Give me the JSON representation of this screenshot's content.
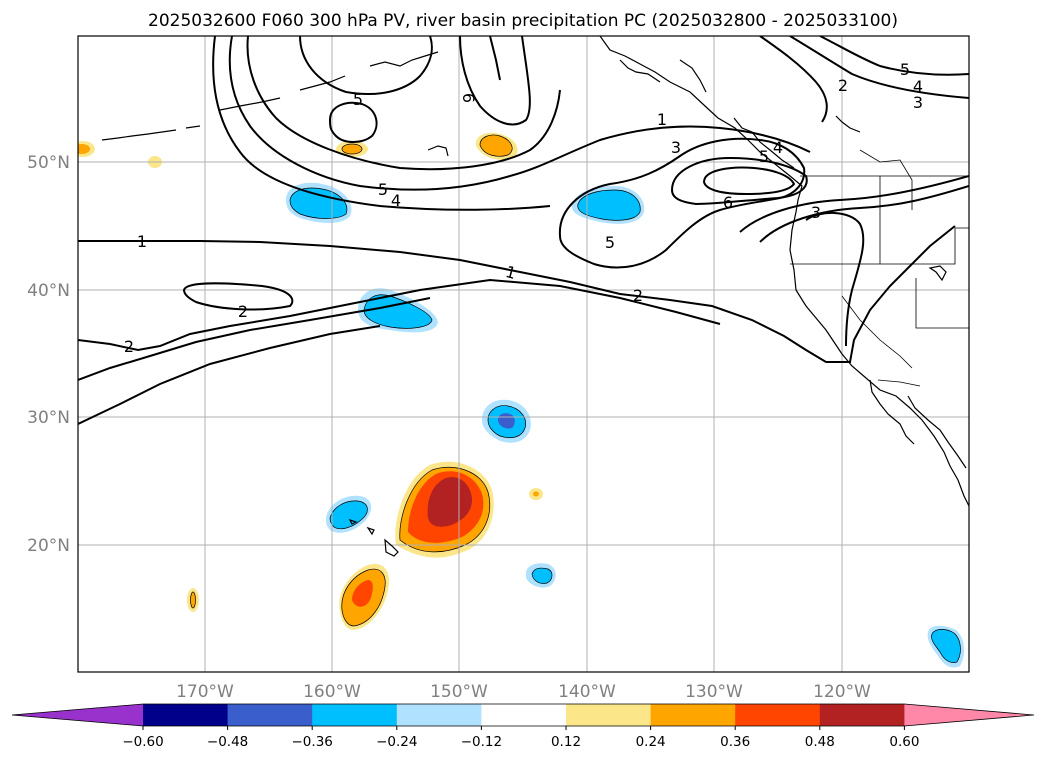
{
  "title": "2025032600 F060 300 hPa PV, river basin precipitation PC (2025032800 - 2025033100)",
  "lon_ticks": [
    "170°W",
    "160°W",
    "150°W",
    "140°W",
    "130°W",
    "120°W"
  ],
  "lat_ticks": [
    "50°N",
    "40°N",
    "30°N",
    "20°N"
  ],
  "colorbar": {
    "colors": [
      "#9932cc",
      "#00008b",
      "#3a5fcd",
      "#00bfff",
      "#b0e2ff",
      "#ffffff",
      "#fbe68a",
      "#ffa500",
      "#ff4500",
      "#b22222",
      "#ff87a8"
    ],
    "ticks": [
      "−0.60",
      "−0.48",
      "−0.36",
      "−0.24",
      "−0.12",
      "0.12",
      "0.24",
      "0.36",
      "0.48",
      "0.60"
    ]
  },
  "contour_labels": [
    {
      "id": "pv-1-west",
      "text": "1"
    },
    {
      "id": "pv-1-center",
      "text": "1"
    },
    {
      "id": "pv-1-north",
      "text": "1"
    },
    {
      "id": "pv-2-west",
      "text": "2"
    },
    {
      "id": "pv-2-edge",
      "text": "2"
    },
    {
      "id": "pv-2-center",
      "text": "2"
    },
    {
      "id": "pv-2-ne",
      "text": "2"
    },
    {
      "id": "pv-3-north",
      "text": "3"
    },
    {
      "id": "pv-3-east",
      "text": "3"
    },
    {
      "id": "pv-3-ne",
      "text": "3"
    },
    {
      "id": "pv-4-west",
      "text": "4"
    },
    {
      "id": "pv-4-east",
      "text": "4"
    },
    {
      "id": "pv-4-ne",
      "text": "4"
    },
    {
      "id": "pv-5-nw",
      "text": "5"
    },
    {
      "id": "pv-5-west",
      "text": "5"
    },
    {
      "id": "pv-5-east",
      "text": "5"
    },
    {
      "id": "pv-5-ne",
      "text": "5"
    },
    {
      "id": "pv-5-mid",
      "text": "5"
    },
    {
      "id": "pv-6-north",
      "text": "6"
    },
    {
      "id": "pv-6-east",
      "text": "6"
    }
  ]
}
